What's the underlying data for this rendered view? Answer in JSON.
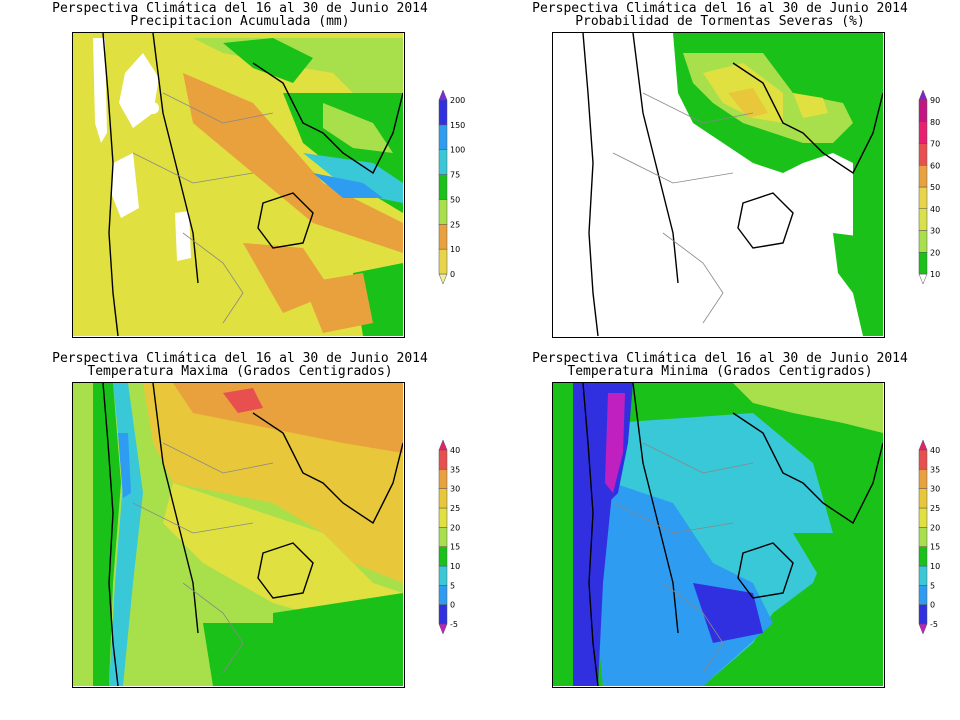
{
  "panels": [
    {
      "id": "precip",
      "title_line1": "Perspectiva Climática del 16 al 30 de Junio 2014",
      "title_line2": "Precipitacion Acumulada (mm)",
      "legend": {
        "labels": [
          "0",
          "10",
          "25",
          "50",
          "75",
          "100",
          "150",
          "200"
        ],
        "colors": [
          "#f0f0a0",
          "#e8d44a",
          "#e8a13c",
          "#a8e04c",
          "#19c119",
          "#38c8d8",
          "#2e9cf0",
          "#3030e0",
          "#7b2ad8"
        ]
      }
    },
    {
      "id": "tormentas",
      "title_line1": "Perspectiva Climática del 16 al 30 de Junio 2014",
      "title_line2": "Probabilidad de Tormentas Severas (%)",
      "legend": {
        "labels": [
          "10",
          "20",
          "30",
          "40",
          "50",
          "60",
          "70",
          "80",
          "90"
        ],
        "colors": [
          "#ffffff",
          "#19c119",
          "#a8e04c",
          "#d8e04a",
          "#e8d44a",
          "#e8a13c",
          "#e85050",
          "#e82070",
          "#c01880",
          "#8a20c8"
        ]
      }
    },
    {
      "id": "tmax",
      "title_line1": "Perspectiva Climática del 16 al 30 de Junio 2014",
      "title_line2": "Temperatura Maxima (Grados Centigrados)",
      "legend": {
        "labels": [
          "-5",
          "0",
          "5",
          "10",
          "15",
          "20",
          "25",
          "30",
          "35",
          "40"
        ],
        "colors": [
          "#c020c0",
          "#3030e0",
          "#2e9cf0",
          "#38c8d8",
          "#19c119",
          "#a8e04c",
          "#e0e040",
          "#e8c83a",
          "#e8a13c",
          "#e85050",
          "#e82070"
        ]
      }
    },
    {
      "id": "tmin",
      "title_line1": "Perspectiva Climática del 16 al 30 de Junio 2014",
      "title_line2": "Temperatura Minima (Grados Centigrados)",
      "legend": {
        "labels": [
          "-5",
          "0",
          "5",
          "10",
          "15",
          "20",
          "25",
          "30",
          "35",
          "40"
        ],
        "colors": [
          "#c020c0",
          "#3030e0",
          "#2e9cf0",
          "#38c8d8",
          "#19c119",
          "#a8e04c",
          "#e0e040",
          "#e8c83a",
          "#e8a13c",
          "#e85050",
          "#e82070"
        ]
      }
    }
  ]
}
